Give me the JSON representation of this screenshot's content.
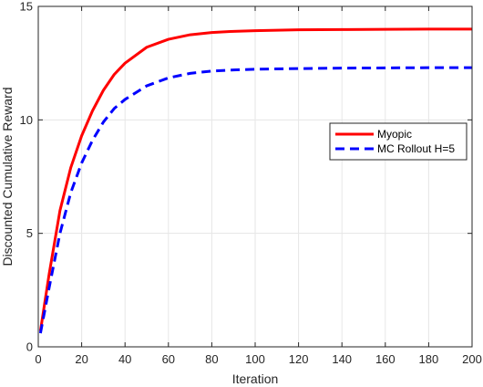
{
  "chart_data": {
    "type": "line",
    "xlabel": "Iteration",
    "ylabel": "Discounted Cumulative Reward",
    "xlim": [
      0,
      200
    ],
    "ylim": [
      0,
      15
    ],
    "xticks": [
      0,
      20,
      40,
      60,
      80,
      100,
      120,
      140,
      160,
      180,
      200
    ],
    "yticks": [
      0,
      5,
      10,
      15
    ],
    "grid": true,
    "legend_position": "center-right",
    "series": [
      {
        "name": "Myopic",
        "color": "#ff0000",
        "style": "solid",
        "x": [
          1,
          5,
          10,
          15,
          20,
          25,
          30,
          35,
          40,
          50,
          60,
          70,
          80,
          90,
          100,
          120,
          140,
          160,
          180,
          200
        ],
        "y": [
          0.7,
          3.2,
          6.0,
          7.9,
          9.3,
          10.4,
          11.3,
          12.0,
          12.5,
          13.2,
          13.55,
          13.75,
          13.85,
          13.9,
          13.93,
          13.97,
          13.98,
          13.99,
          14.0,
          14.0
        ]
      },
      {
        "name": "MC Rollout H=5",
        "color": "#0000ff",
        "style": "dashed",
        "x": [
          1,
          5,
          10,
          15,
          20,
          25,
          30,
          35,
          40,
          50,
          60,
          70,
          80,
          90,
          100,
          120,
          140,
          160,
          180,
          200
        ],
        "y": [
          0.6,
          2.6,
          5.0,
          6.8,
          8.1,
          9.1,
          9.9,
          10.5,
          10.9,
          11.5,
          11.85,
          12.05,
          12.15,
          12.2,
          12.23,
          12.26,
          12.28,
          12.29,
          12.3,
          12.3
        ]
      }
    ]
  }
}
